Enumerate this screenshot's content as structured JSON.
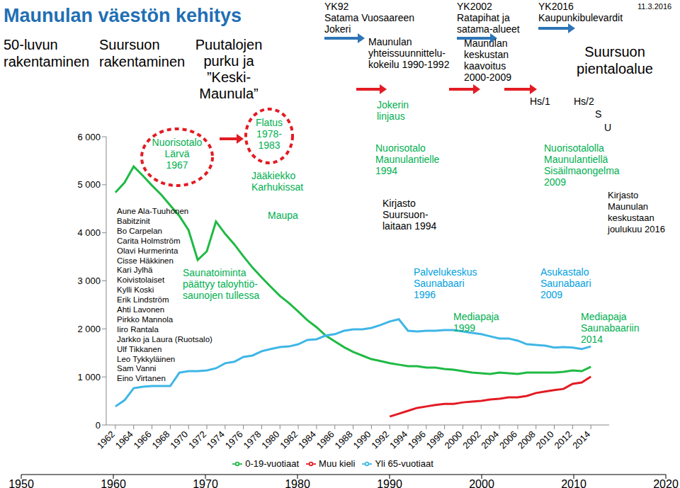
{
  "chart_data": {
    "type": "line",
    "title": "Maunulan väestön kehitys",
    "x": [
      1962,
      1963,
      1964,
      1965,
      1966,
      1967,
      1968,
      1969,
      1970,
      1971,
      1972,
      1973,
      1974,
      1975,
      1976,
      1977,
      1978,
      1979,
      1980,
      1981,
      1982,
      1983,
      1984,
      1985,
      1986,
      1987,
      1988,
      1989,
      1990,
      1991,
      1992,
      1993,
      1994,
      1995,
      1996,
      1997,
      1998,
      1999,
      2000,
      2001,
      2002,
      2003,
      2004,
      2005,
      2006,
      2007,
      2008,
      2009,
      2010,
      2011,
      2012,
      2013,
      2014
    ],
    "series": [
      {
        "name": "0-19-vuotiaat",
        "color": "#1fba45",
        "values": [
          4840,
          5045,
          5380,
          5190,
          4985,
          4795,
          4570,
          4350,
          4055,
          3435,
          3615,
          4235,
          3980,
          3760,
          3510,
          3275,
          3070,
          2875,
          2685,
          2535,
          2360,
          2180,
          2035,
          1860,
          1740,
          1620,
          1520,
          1445,
          1370,
          1330,
          1285,
          1255,
          1225,
          1225,
          1195,
          1195,
          1165,
          1150,
          1120,
          1090,
          1075,
          1060,
          1090,
          1075,
          1060,
          1090,
          1090,
          1090,
          1090,
          1105,
          1135,
          1120,
          1210
        ]
      },
      {
        "name": "Yli 65-vuotiaat",
        "color": "#3fb6e6",
        "values": [
          385,
          515,
          765,
          795,
          810,
          810,
          810,
          1090,
          1120,
          1120,
          1135,
          1180,
          1285,
          1315,
          1415,
          1445,
          1535,
          1580,
          1620,
          1635,
          1680,
          1770,
          1785,
          1860,
          1890,
          1960,
          1990,
          1990,
          2020,
          2080,
          2155,
          2200,
          1960,
          1945,
          1960,
          1960,
          1975,
          1975,
          1945,
          1915,
          1890,
          1845,
          1800,
          1800,
          1755,
          1680,
          1665,
          1650,
          1610,
          1620,
          1610,
          1580,
          1635
        ]
      },
      {
        "name": "Muu kieli",
        "color": "#e31b23",
        "values": [
          null,
          null,
          null,
          null,
          null,
          null,
          null,
          null,
          null,
          null,
          null,
          null,
          null,
          null,
          null,
          null,
          null,
          null,
          null,
          null,
          null,
          null,
          null,
          null,
          null,
          null,
          null,
          null,
          null,
          null,
          175,
          235,
          295,
          355,
          385,
          415,
          440,
          440,
          470,
          485,
          500,
          530,
          545,
          575,
          575,
          605,
          665,
          695,
          725,
          750,
          855,
          885,
          1005
        ]
      }
    ],
    "xlim": [
      1961,
      2016
    ],
    "xticks": [
      1962,
      1964,
      1966,
      1968,
      1970,
      1972,
      1974,
      1976,
      1978,
      1980,
      1982,
      1984,
      1986,
      1988,
      1990,
      1992,
      1994,
      1996,
      1998,
      2000,
      2002,
      2004,
      2006,
      2008,
      2010,
      2012,
      2014
    ],
    "ylim": [
      0,
      6000
    ],
    "yticks": [
      0,
      {
        "value": 1000,
        "label": "1 000"
      },
      {
        "value": 2000,
        "label": "2 000"
      },
      {
        "value": 3000,
        "label": "3 000"
      },
      {
        "value": 4000,
        "label": "4 000"
      },
      {
        "value": 5000,
        "label": "5 000"
      },
      {
        "value": 6000,
        "label": "6 000"
      }
    ],
    "x2lim": [
      1950,
      2020
    ],
    "x2ticks": [
      1950,
      1960,
      1970,
      1980,
      1990,
      2000,
      2010,
      2020
    ],
    "grid": false,
    "legend": "bottom",
    "annotations": [
      "50-luvun\nrakentaminen",
      "Suursuon\nrakentaminen",
      "Puutalojen\npurku ja\n”Keski-\nMaunula”",
      "Suursuon\npientaloalue",
      "YK92\nSatama Vuosaareen\nJokeri",
      "Maunulan\nyhteissuunnittelu-\nkokeilu 1990-1992",
      "YK2002\nRatapihat ja\nsatama-alueet",
      "Maunulan\nkeskustan\nkaavoitus\n2000-2009",
      "YK2016\nKaupunkibulevardit",
      "11.3.2016",
      "Hs/1",
      "Hs/2",
      "S",
      "U",
      "Nuorisotalo\nLärvä\n1967",
      "Flatus\n1978-\n1983",
      "Jääkiekko\nKarhukissat",
      "Maupa",
      "Saunatoiminta\npäättyy taloyhtiö-\nsaunojen tullessa",
      "Jokerin\nlinjaus",
      "Nuorisotalo\nMaunulantielle\n1994",
      "Kirjasto\nSuursuon-\nlaitaan 1994",
      "Palvelukeskus\nSaunabaari\n1996",
      "Mediapaja\n1999",
      "Nuorisotalolla\nMaunulantiellä\nSisäilmaongelma\n2009",
      "Kirjasto\nMaunulan\nkeskustaan\njoulukuu 2016",
      "Asukastalo\nSaunabaari\n2009",
      "Mediapaja\nSaunabaariin\n2014",
      "Aune Ala-Tuuhonen\nBabitzinit\nBo Carpelan\nCarita Holmström\nOlavi Hurmerinta\nCisse Häkkinen\nKari Jylhä\nKoivistolaiset\nKylli Koski\nErik Lindström\nAhti Lavonen\nPirkko Mannola\nIiro Rantala\nJarkko ja Laura (Ruotsalo)\nUlf Tikkanen\nLeo Tykkyläinen\nSam Vanni\nEino Virtanen"
    ]
  }
}
